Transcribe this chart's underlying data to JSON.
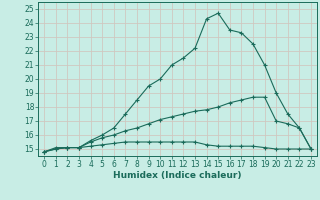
{
  "xlabel": "Humidex (Indice chaleur)",
  "bg_color": "#c8ede5",
  "line_color": "#1a6b5a",
  "grid_color": "#d0c8c0",
  "xlim": [
    -0.5,
    23.5
  ],
  "ylim": [
    14.5,
    25.5
  ],
  "xticks": [
    0,
    1,
    2,
    3,
    4,
    5,
    6,
    7,
    8,
    9,
    10,
    11,
    12,
    13,
    14,
    15,
    16,
    17,
    18,
    19,
    20,
    21,
    22,
    23
  ],
  "yticks": [
    15,
    16,
    17,
    18,
    19,
    20,
    21,
    22,
    23,
    24,
    25
  ],
  "line1_x": [
    0,
    1,
    2,
    3,
    4,
    5,
    6,
    7,
    8,
    9,
    10,
    11,
    12,
    13,
    14,
    15,
    16,
    17,
    18,
    19,
    20,
    21,
    22,
    23
  ],
  "line1_y": [
    14.8,
    15.1,
    15.1,
    15.1,
    15.6,
    16.0,
    16.5,
    17.5,
    18.5,
    19.5,
    20.0,
    21.0,
    21.5,
    22.2,
    24.3,
    24.7,
    23.5,
    23.3,
    22.5,
    21.0,
    19.0,
    17.5,
    16.5,
    15.0
  ],
  "line2_x": [
    0,
    1,
    2,
    3,
    4,
    5,
    6,
    7,
    8,
    9,
    10,
    11,
    12,
    13,
    14,
    15,
    16,
    17,
    18,
    19,
    20,
    21,
    22,
    23
  ],
  "line2_y": [
    14.8,
    15.0,
    15.1,
    15.1,
    15.5,
    15.8,
    16.0,
    16.3,
    16.5,
    16.8,
    17.1,
    17.3,
    17.5,
    17.7,
    17.8,
    18.0,
    18.3,
    18.5,
    18.7,
    18.7,
    17.0,
    16.8,
    16.5,
    15.0
  ],
  "line3_x": [
    0,
    1,
    2,
    3,
    4,
    5,
    6,
    7,
    8,
    9,
    10,
    11,
    12,
    13,
    14,
    15,
    16,
    17,
    18,
    19,
    20,
    21,
    22,
    23
  ],
  "line3_y": [
    14.8,
    15.0,
    15.1,
    15.1,
    15.2,
    15.3,
    15.4,
    15.5,
    15.5,
    15.5,
    15.5,
    15.5,
    15.5,
    15.5,
    15.3,
    15.2,
    15.2,
    15.2,
    15.2,
    15.1,
    15.0,
    15.0,
    15.0,
    15.0
  ],
  "marker": "+",
  "markersize": 3,
  "linewidth": 0.8,
  "tick_fontsize": 5.5,
  "xlabel_fontsize": 6.5
}
